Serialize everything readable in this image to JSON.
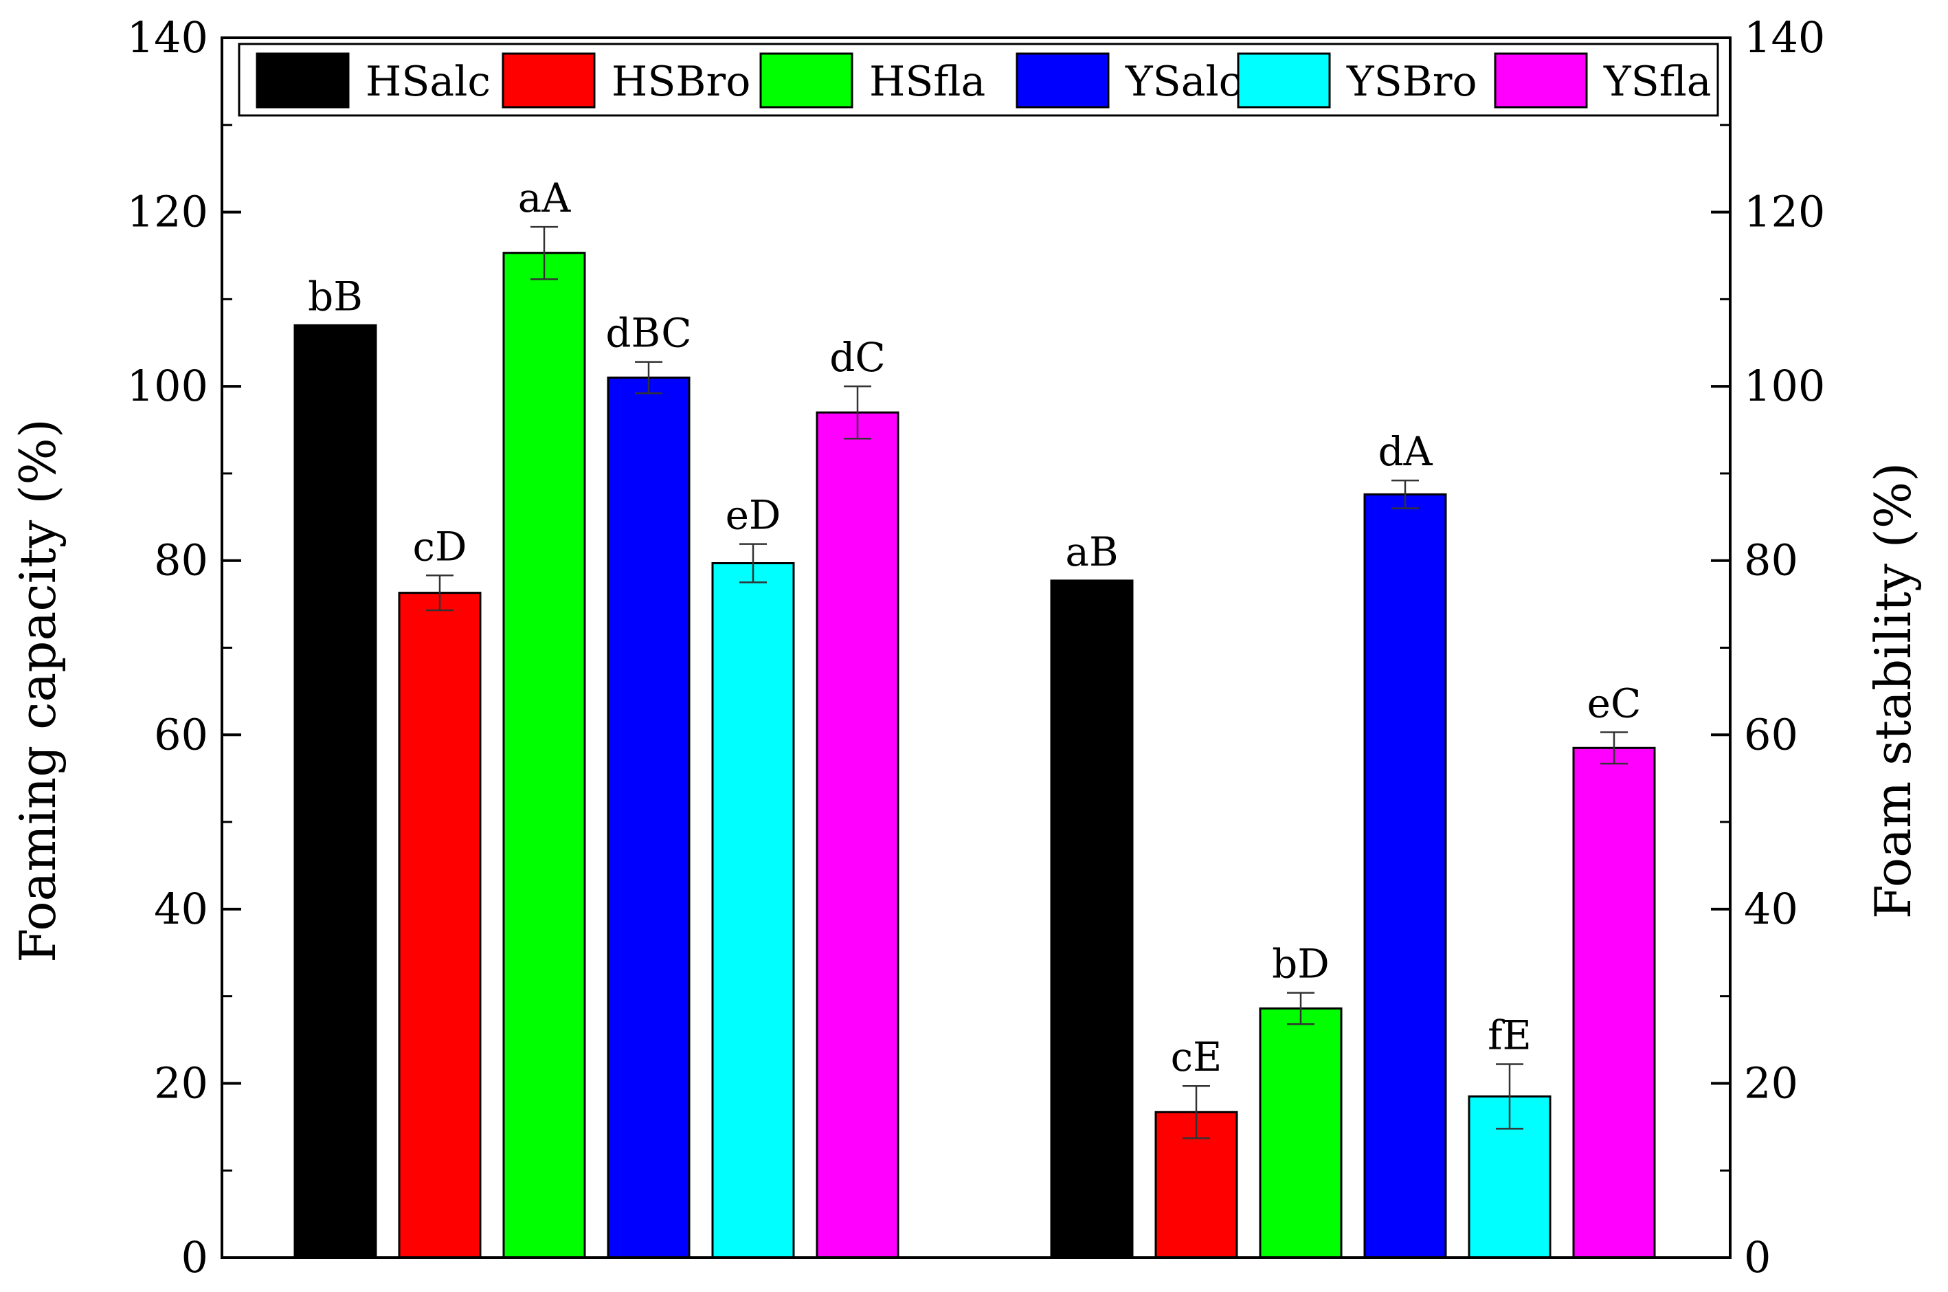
{
  "chart_data": {
    "type": "bar",
    "title": "",
    "ylabel_left": "Foaming capacity (%)",
    "ylabel_right": "Foam stability (%)",
    "xlabel": "",
    "ylim": [
      0,
      140
    ],
    "yticks": [
      "0",
      "20",
      "40",
      "60",
      "80",
      "100",
      "120",
      "140"
    ],
    "legend_position": "top",
    "grid": false,
    "groups": [
      {
        "name": "",
        "axis": "left",
        "bars": [
          {
            "series": "HSalc",
            "value": 107.0,
            "error": 0,
            "label": "bB"
          },
          {
            "series": "HSBro",
            "value": 76.3,
            "error": 2.0,
            "label": "cD"
          },
          {
            "series": "HSfla",
            "value": 115.3,
            "error": 3.0,
            "label": "aA"
          },
          {
            "series": "YSalc",
            "value": 101.0,
            "error": 1.8,
            "label": "dBC"
          },
          {
            "series": "YSBro",
            "value": 79.7,
            "error": 2.2,
            "label": "eD"
          },
          {
            "series": "YSfla",
            "value": 97.0,
            "error": 3.0,
            "label": "dC"
          }
        ]
      },
      {
        "name": "",
        "axis": "right",
        "bars": [
          {
            "series": "HSalc",
            "value": 77.7,
            "error": 0,
            "label": "aB"
          },
          {
            "series": "HSBro",
            "value": 16.7,
            "error": 3.0,
            "label": "cE"
          },
          {
            "series": "HSfla",
            "value": 28.6,
            "error": 1.8,
            "label": "bD"
          },
          {
            "series": "YSalc",
            "value": 87.6,
            "error": 1.6,
            "label": "dA"
          },
          {
            "series": "YSBro",
            "value": 18.5,
            "error": 3.7,
            "label": "fE"
          },
          {
            "series": "YSfla",
            "value": 58.5,
            "error": 1.8,
            "label": "eC"
          }
        ]
      }
    ],
    "series": [
      {
        "name": "HSalc",
        "color": "#000000"
      },
      {
        "name": "HSBro",
        "color": "#ff0000"
      },
      {
        "name": "HSfla",
        "color": "#00ff00"
      },
      {
        "name": "YSalc",
        "color": "#0000ff"
      },
      {
        "name": "YSBro",
        "color": "#00ffff"
      },
      {
        "name": "YSfla",
        "color": "#ff00ff"
      }
    ]
  }
}
